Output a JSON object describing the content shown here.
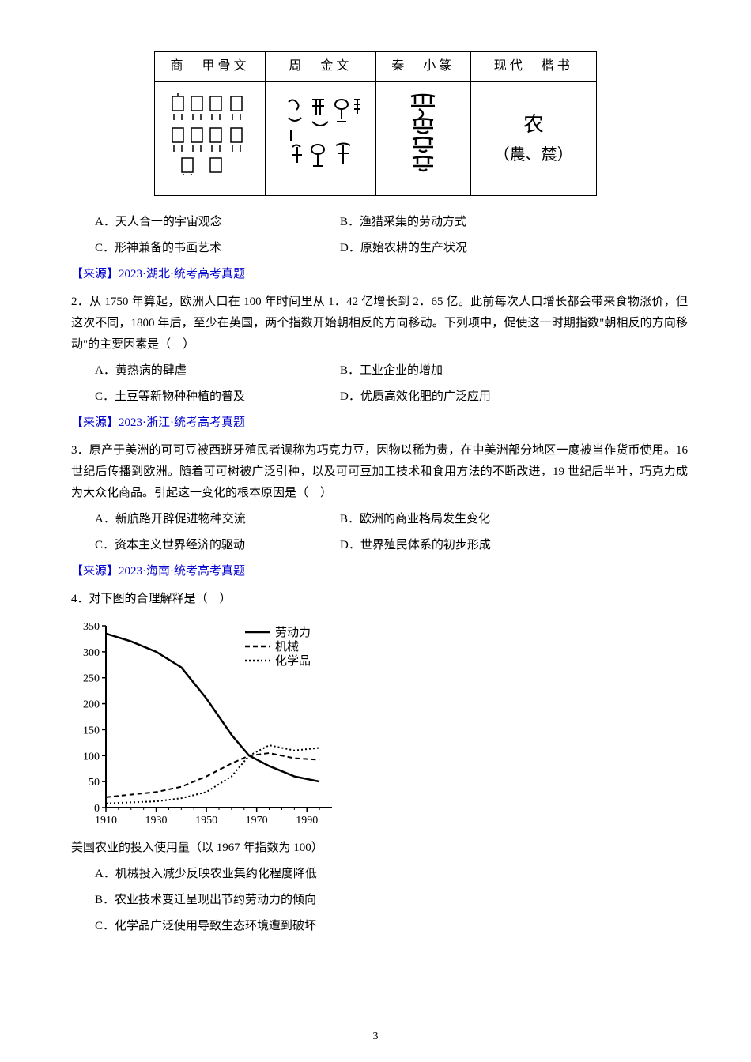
{
  "script_table": {
    "headers": [
      "商　甲骨文",
      "周　金文",
      "秦　小篆",
      "现代　楷书"
    ],
    "modern_cell_line1": "农",
    "modern_cell_line2": "（農、辳）"
  },
  "q1": {
    "options": {
      "A": "A．天人合一的宇宙观念",
      "B": "B．渔猎采集的劳动方式",
      "C": "C．形神兼备的书画艺术",
      "D": "D．原始农耕的生产状况"
    },
    "source": "【来源】2023·湖北·统考高考真题"
  },
  "q2": {
    "number": "2．",
    "text": "从 1750 年算起，欧洲人口在 100 年时间里从 1．42 亿增长到 2．65 亿。此前每次人口增长都会带来食物涨价，但这次不同，1800 年后，至少在英国，两个指数开始朝相反的方向移动。下列项中，促使这一时期指数\"朝相反的方向移动\"的主要因素是（　）",
    "options": {
      "A": "A．黄热病的肆虐",
      "B": "B．工业企业的增加",
      "C": "C．土豆等新物种种植的普及",
      "D": "D．优质高效化肥的广泛应用"
    },
    "source": "【来源】2023·浙江·统考高考真题"
  },
  "q3": {
    "number": "3．",
    "text": "原产于美洲的可可豆被西班牙殖民者误称为巧克力豆，因物以稀为贵，在中美洲部分地区一度被当作货币使用。16 世纪后传播到欧洲。随着可可树被广泛引种，以及可可豆加工技术和食用方法的不断改进，19 世纪后半叶，巧克力成为大众化商品。引起这一变化的根本原因是（　）",
    "options": {
      "A": "A．新航路开辟促进物种交流",
      "B": "B．欧洲的商业格局发生变化",
      "C": "C．资本主义世界经济的驱动",
      "D": "D．世界殖民体系的初步形成"
    },
    "source": "【来源】2023·海南·统考高考真题"
  },
  "q4": {
    "number": "4．",
    "text": "对下图的合理解释是（　）",
    "caption": "美国农业的投入使用量（以 1967 年指数为 100）",
    "options": {
      "A": "A．机械投入减少反映农业集约化程度降低",
      "B": "B．农业技术变迁呈现出节约劳动力的倾向",
      "C": "C．化学品广泛使用导致生态环境遭到破坏"
    }
  },
  "chart": {
    "type": "line",
    "x_ticks": [
      1910,
      1930,
      1950,
      1970,
      1990
    ],
    "y_ticks": [
      0,
      50,
      100,
      150,
      200,
      250,
      300,
      350
    ],
    "xlim": [
      1910,
      2000
    ],
    "ylim": [
      0,
      350
    ],
    "legend": [
      {
        "label": "劳动力",
        "style": "solid"
      },
      {
        "label": "机械",
        "style": "dashed"
      },
      {
        "label": "化学品",
        "style": "dotted"
      }
    ],
    "series": {
      "labor": {
        "style": "solid",
        "color": "#000000",
        "width": 2.5,
        "points": [
          {
            "x": 1910,
            "y": 335
          },
          {
            "x": 1920,
            "y": 320
          },
          {
            "x": 1930,
            "y": 300
          },
          {
            "x": 1940,
            "y": 270
          },
          {
            "x": 1950,
            "y": 210
          },
          {
            "x": 1960,
            "y": 140
          },
          {
            "x": 1967,
            "y": 100
          },
          {
            "x": 1975,
            "y": 80
          },
          {
            "x": 1985,
            "y": 60
          },
          {
            "x": 1995,
            "y": 50
          }
        ]
      },
      "machine": {
        "style": "dashed",
        "color": "#000000",
        "width": 2,
        "points": [
          {
            "x": 1910,
            "y": 20
          },
          {
            "x": 1920,
            "y": 25
          },
          {
            "x": 1930,
            "y": 30
          },
          {
            "x": 1940,
            "y": 40
          },
          {
            "x": 1950,
            "y": 60
          },
          {
            "x": 1960,
            "y": 85
          },
          {
            "x": 1967,
            "y": 100
          },
          {
            "x": 1975,
            "y": 105
          },
          {
            "x": 1985,
            "y": 95
          },
          {
            "x": 1995,
            "y": 92
          }
        ]
      },
      "chemical": {
        "style": "dotted",
        "color": "#000000",
        "width": 2,
        "points": [
          {
            "x": 1910,
            "y": 8
          },
          {
            "x": 1920,
            "y": 10
          },
          {
            "x": 1930,
            "y": 12
          },
          {
            "x": 1940,
            "y": 18
          },
          {
            "x": 1950,
            "y": 30
          },
          {
            "x": 1960,
            "y": 60
          },
          {
            "x": 1967,
            "y": 100
          },
          {
            "x": 1975,
            "y": 120
          },
          {
            "x": 1985,
            "y": 110
          },
          {
            "x": 1995,
            "y": 115
          }
        ]
      }
    },
    "axis_color": "#000000",
    "tick_fontsize": 14
  },
  "page_number": "3"
}
